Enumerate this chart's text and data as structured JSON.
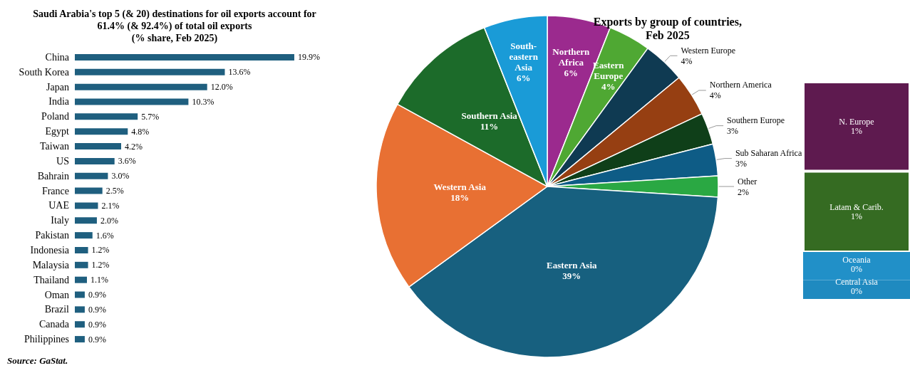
{
  "chart_data": [
    {
      "type": "bar",
      "orientation": "horizontal",
      "title": "Saudi Arabia's top 5 (& 20) destinations for oil exports account for\n61.4% (& 92.4%) of total oil exports\n(% share, Feb 2025)",
      "categories": [
        "China",
        "South Korea",
        "Japan",
        "India",
        "Poland",
        "Egypt",
        "Taiwan",
        "US",
        "Bahrain",
        "France",
        "UAE",
        "Italy",
        "Pakistan",
        "Indonesia",
        "Malaysia",
        "Thailand",
        "Oman",
        "Brazil",
        "Canada",
        "Philippines"
      ],
      "values": [
        19.9,
        13.6,
        12.0,
        10.3,
        5.7,
        4.8,
        4.2,
        3.6,
        3.0,
        2.5,
        2.1,
        2.0,
        1.6,
        1.2,
        1.2,
        1.1,
        0.9,
        0.9,
        0.9,
        0.9
      ],
      "value_labels": [
        "19.9%",
        "13.6%",
        "12.0%",
        "10.3%",
        "5.7%",
        "4.8%",
        "4.2%",
        "3.6%",
        "3.0%",
        "2.5%",
        "2.1%",
        "2.0%",
        "1.6%",
        "1.2%",
        "1.2%",
        "1.1%",
        "0.9%",
        "0.9%",
        "0.9%",
        "0.9%"
      ],
      "color": "#1f5f7f",
      "annotations": [
        "Source: GaStat."
      ]
    },
    {
      "type": "pie",
      "title": "Exports by group of countries,\nFeb 2025",
      "categories": [
        "Northern Africa",
        "Eastern Europe",
        "Western Europe",
        "Northern America",
        "Southern Europe",
        "Sub Saharan Africa",
        "Other",
        "Eastern Asia",
        "Western Asia",
        "Southern Asia",
        "South-eastern Asia"
      ],
      "values": [
        6,
        4,
        4,
        4,
        3,
        3,
        2,
        39,
        18,
        11,
        6
      ],
      "value_labels": [
        "6%",
        "4%",
        "4%",
        "4%",
        "3%",
        "3%",
        "2%",
        "39%",
        "18%",
        "11%",
        "6%"
      ],
      "colors": [
        "#9b2a8e",
        "#4fa833",
        "#0f3a52",
        "#963f12",
        "#0f3f19",
        "#0e5c86",
        "#2aa843",
        "#17607f",
        "#e87033",
        "#1c6b2a",
        "#1a9bd7"
      ]
    },
    {
      "type": "bar",
      "stacked": true,
      "categories": [
        null
      ],
      "series": [
        {
          "name": "Central Asia",
          "color": "#1f8ac0",
          "values": [
            0.2
          ],
          "value_labels": [
            "0%"
          ]
        },
        {
          "name": "Oceania",
          "color": "#2190c8",
          "values": [
            0.3
          ],
          "value_labels": [
            "0%"
          ]
        },
        {
          "name": "Latam & Carib.",
          "color": "#356b22",
          "values": [
            0.86
          ],
          "value_labels": [
            "1%"
          ]
        },
        {
          "name": "N. Europe",
          "color": "#5e1a4f",
          "values": [
            0.95
          ],
          "value_labels": [
            "1%"
          ]
        }
      ]
    }
  ]
}
